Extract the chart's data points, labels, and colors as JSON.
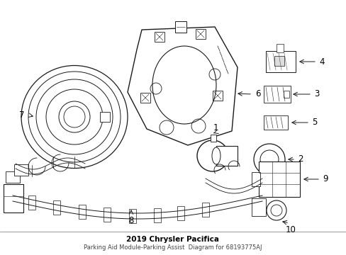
{
  "title": "2019 Chrysler Pacifica",
  "subtitle": "Parking Aid Module-Parking Assist  Diagram for 68193775AJ",
  "background_color": "#ffffff",
  "line_color": "#1a1a1a",
  "text_color": "#000000",
  "label_fontsize": 8.5,
  "fig_width": 4.89,
  "fig_height": 3.6,
  "dpi": 100
}
